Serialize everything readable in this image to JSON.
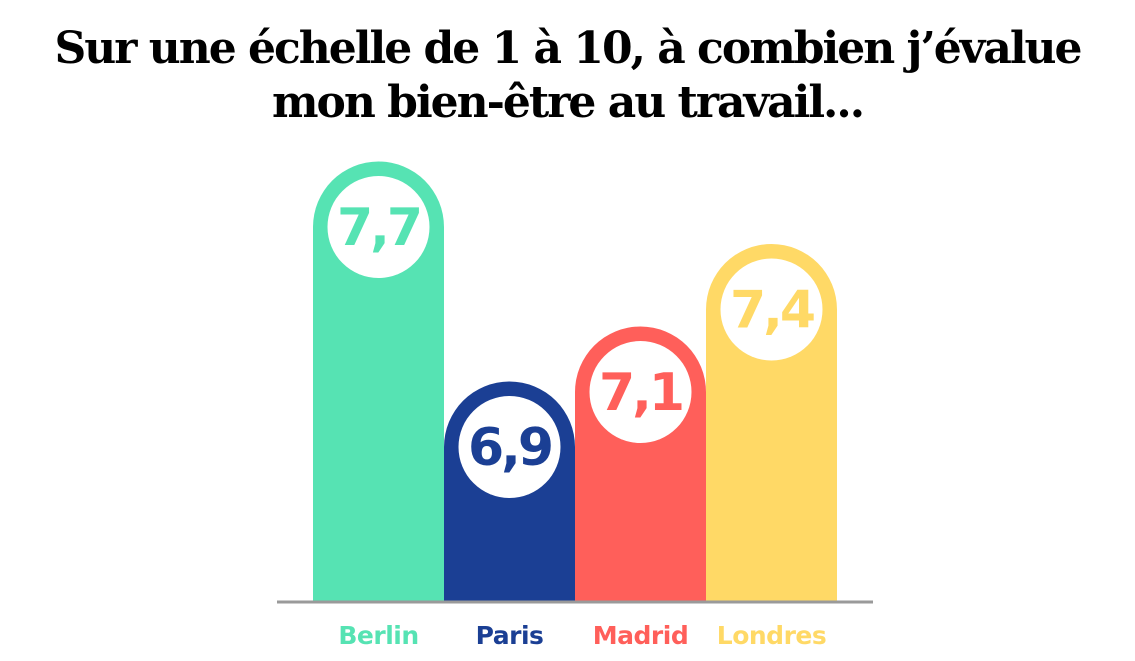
{
  "title_lines": [
    "Sur une échelle de 1 à 10, à combien j’évalue",
    "mon bien-être au travail..."
  ],
  "chart_data": {
    "type": "bar",
    "title": "Sur une échelle de 1 à 10, à combien j’évalue mon bien-être au travail...",
    "categories": [
      "Berlin",
      "Paris",
      "Madrid",
      "Londres"
    ],
    "values": [
      7.7,
      6.9,
      7.1,
      7.4
    ],
    "value_labels": [
      "7,7",
      "6,9",
      "7,1",
      "7,4"
    ],
    "colors": [
      "#56e3b3",
      "#1b3f94",
      "#ff5f5a",
      "#ffd966"
    ],
    "xlabel": "",
    "ylabel": "",
    "grid": false,
    "legend": "none"
  }
}
